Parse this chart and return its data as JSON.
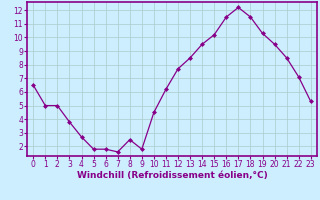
{
  "x": [
    0,
    1,
    2,
    3,
    4,
    5,
    6,
    7,
    8,
    9,
    10,
    11,
    12,
    13,
    14,
    15,
    16,
    17,
    18,
    19,
    20,
    21,
    22,
    23
  ],
  "y": [
    6.5,
    5.0,
    5.0,
    3.8,
    2.7,
    1.8,
    1.8,
    1.6,
    2.5,
    1.8,
    4.5,
    6.2,
    7.7,
    8.5,
    9.5,
    10.2,
    11.5,
    12.2,
    11.5,
    10.3,
    9.5,
    8.5,
    7.1,
    5.3
  ],
  "line_color": "#880088",
  "marker": "D",
  "markersize": 2.0,
  "linewidth": 0.9,
  "background_color": "#cceeff",
  "grid_color": "#aacccc",
  "xlabel": "Windchill (Refroidissement éolien,°C)",
  "xlim": [
    -0.5,
    23.5
  ],
  "ylim": [
    1.3,
    12.6
  ],
  "yticks": [
    2,
    3,
    4,
    5,
    6,
    7,
    8,
    9,
    10,
    11,
    12
  ],
  "xticks": [
    0,
    1,
    2,
    3,
    4,
    5,
    6,
    7,
    8,
    9,
    10,
    11,
    12,
    13,
    14,
    15,
    16,
    17,
    18,
    19,
    20,
    21,
    22,
    23
  ],
  "xlabel_fontsize": 6.5,
  "tick_fontsize": 5.5,
  "spine_color": "#880088",
  "label_color": "#880088"
}
